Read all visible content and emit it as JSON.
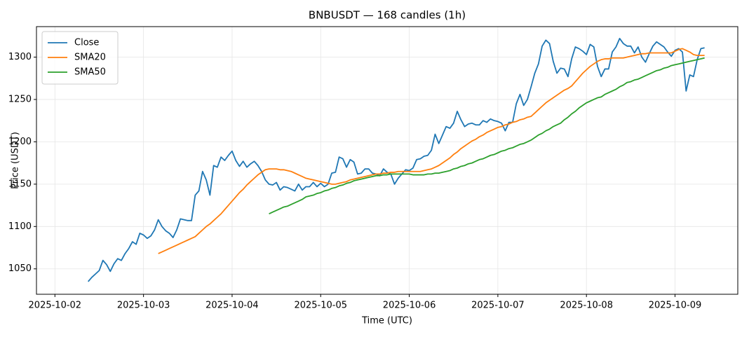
{
  "chart_data": {
    "type": "line",
    "title": "BNBUSDT — 168 candles (1h)",
    "xlabel": "Time (UTC)",
    "ylabel": "Price (USDT)",
    "x": [
      "2025-10-02 09:00",
      "2025-10-02 10:00",
      "2025-10-02 11:00",
      "2025-10-02 12:00",
      "2025-10-02 13:00",
      "2025-10-02 14:00",
      "2025-10-02 15:00",
      "2025-10-02 16:00",
      "2025-10-02 17:00",
      "2025-10-02 18:00",
      "2025-10-02 19:00",
      "2025-10-02 20:00",
      "2025-10-02 21:00",
      "2025-10-02 22:00",
      "2025-10-02 23:00",
      "2025-10-03 00:00",
      "2025-10-03 01:00",
      "2025-10-03 02:00",
      "2025-10-03 03:00",
      "2025-10-03 04:00",
      "2025-10-03 05:00",
      "2025-10-03 06:00",
      "2025-10-03 07:00",
      "2025-10-03 08:00",
      "2025-10-03 09:00",
      "2025-10-03 10:00",
      "2025-10-03 11:00",
      "2025-10-03 12:00",
      "2025-10-03 13:00",
      "2025-10-03 14:00",
      "2025-10-03 15:00",
      "2025-10-03 16:00",
      "2025-10-03 17:00",
      "2025-10-03 18:00",
      "2025-10-03 19:00",
      "2025-10-03 20:00",
      "2025-10-03 21:00",
      "2025-10-03 22:00",
      "2025-10-03 23:00",
      "2025-10-04 00:00",
      "2025-10-04 01:00",
      "2025-10-04 02:00",
      "2025-10-04 03:00",
      "2025-10-04 04:00",
      "2025-10-04 05:00",
      "2025-10-04 06:00",
      "2025-10-04 07:00",
      "2025-10-04 08:00",
      "2025-10-04 09:00",
      "2025-10-04 10:00",
      "2025-10-04 11:00",
      "2025-10-04 12:00",
      "2025-10-04 13:00",
      "2025-10-04 14:00",
      "2025-10-04 15:00",
      "2025-10-04 16:00",
      "2025-10-04 17:00",
      "2025-10-04 18:00",
      "2025-10-04 19:00",
      "2025-10-04 20:00",
      "2025-10-04 21:00",
      "2025-10-04 22:00",
      "2025-10-04 23:00",
      "2025-10-05 00:00",
      "2025-10-05 01:00",
      "2025-10-05 02:00",
      "2025-10-05 03:00",
      "2025-10-05 04:00",
      "2025-10-05 05:00",
      "2025-10-05 06:00",
      "2025-10-05 07:00",
      "2025-10-05 08:00",
      "2025-10-05 09:00",
      "2025-10-05 10:00",
      "2025-10-05 11:00",
      "2025-10-05 12:00",
      "2025-10-05 13:00",
      "2025-10-05 14:00",
      "2025-10-05 15:00",
      "2025-10-05 16:00",
      "2025-10-05 17:00",
      "2025-10-05 18:00",
      "2025-10-05 19:00",
      "2025-10-05 20:00",
      "2025-10-05 21:00",
      "2025-10-05 22:00",
      "2025-10-05 23:00",
      "2025-10-06 00:00",
      "2025-10-06 01:00",
      "2025-10-06 02:00",
      "2025-10-06 03:00",
      "2025-10-06 04:00",
      "2025-10-06 05:00",
      "2025-10-06 06:00",
      "2025-10-06 07:00",
      "2025-10-06 08:00",
      "2025-10-06 09:00",
      "2025-10-06 10:00",
      "2025-10-06 11:00",
      "2025-10-06 12:00",
      "2025-10-06 13:00",
      "2025-10-06 14:00",
      "2025-10-06 15:00",
      "2025-10-06 16:00",
      "2025-10-06 17:00",
      "2025-10-06 18:00",
      "2025-10-06 19:00",
      "2025-10-06 20:00",
      "2025-10-06 21:00",
      "2025-10-06 22:00",
      "2025-10-06 23:00",
      "2025-10-07 00:00",
      "2025-10-07 01:00",
      "2025-10-07 02:00",
      "2025-10-07 03:00",
      "2025-10-07 04:00",
      "2025-10-07 05:00",
      "2025-10-07 06:00",
      "2025-10-07 07:00",
      "2025-10-07 08:00",
      "2025-10-07 09:00",
      "2025-10-07 10:00",
      "2025-10-07 11:00",
      "2025-10-07 12:00",
      "2025-10-07 13:00",
      "2025-10-07 14:00",
      "2025-10-07 15:00",
      "2025-10-07 16:00",
      "2025-10-07 17:00",
      "2025-10-07 18:00",
      "2025-10-07 19:00",
      "2025-10-07 20:00",
      "2025-10-07 21:00",
      "2025-10-07 22:00",
      "2025-10-07 23:00",
      "2025-10-08 00:00",
      "2025-10-08 01:00",
      "2025-10-08 02:00",
      "2025-10-08 03:00",
      "2025-10-08 04:00",
      "2025-10-08 05:00",
      "2025-10-08 06:00",
      "2025-10-08 07:00",
      "2025-10-08 08:00",
      "2025-10-08 09:00",
      "2025-10-08 10:00",
      "2025-10-08 11:00",
      "2025-10-08 12:00",
      "2025-10-08 13:00",
      "2025-10-08 14:00",
      "2025-10-08 15:00",
      "2025-10-08 16:00",
      "2025-10-08 17:00",
      "2025-10-08 18:00",
      "2025-10-08 19:00",
      "2025-10-08 20:00",
      "2025-10-08 21:00",
      "2025-10-08 22:00",
      "2025-10-08 23:00",
      "2025-10-09 00:00",
      "2025-10-09 01:00",
      "2025-10-09 02:00",
      "2025-10-09 03:00",
      "2025-10-09 04:00",
      "2025-10-09 05:00",
      "2025-10-09 06:00",
      "2025-10-09 07:00",
      "2025-10-09 08:00"
    ],
    "series": [
      {
        "name": "Close",
        "color": "#1f77b4",
        "values": [
          1035,
          1040,
          1044,
          1048,
          1060,
          1055,
          1047,
          1056,
          1062,
          1060,
          1068,
          1074,
          1082,
          1079,
          1092,
          1090,
          1086,
          1089,
          1096,
          1108,
          1100,
          1095,
          1092,
          1087,
          1096,
          1109,
          1108,
          1107,
          1107,
          1137,
          1142,
          1165,
          1155,
          1137,
          1172,
          1170,
          1182,
          1178,
          1184,
          1189,
          1178,
          1171,
          1177,
          1170,
          1174,
          1177,
          1172,
          1165,
          1155,
          1150,
          1149,
          1152,
          1143,
          1147,
          1146,
          1144,
          1142,
          1150,
          1143,
          1147,
          1147,
          1152,
          1147,
          1151,
          1147,
          1150,
          1163,
          1164,
          1182,
          1180,
          1170,
          1179,
          1176,
          1162,
          1163,
          1168,
          1168,
          1163,
          1162,
          1160,
          1168,
          1164,
          1162,
          1150,
          1157,
          1162,
          1167,
          1166,
          1169,
          1179,
          1180,
          1183,
          1184,
          1190,
          1209,
          1198,
          1208,
          1218,
          1216,
          1222,
          1236,
          1226,
          1218,
          1221,
          1222,
          1220,
          1220,
          1225,
          1223,
          1227,
          1225,
          1224,
          1222,
          1213,
          1223,
          1223,
          1245,
          1256,
          1243,
          1250,
          1265,
          1281,
          1292,
          1313,
          1320,
          1316,
          1295,
          1281,
          1287,
          1286,
          1277,
          1298,
          1312,
          1310,
          1307,
          1303,
          1315,
          1312,
          1289,
          1277,
          1286,
          1286,
          1306,
          1312,
          1322,
          1316,
          1313,
          1313,
          1305,
          1312,
          1300,
          1294,
          1304,
          1313,
          1318,
          1315,
          1312,
          1306,
          1301,
          1308,
          1310,
          1306,
          1260,
          1279,
          1277,
          1297,
          1310,
          1311
        ]
      },
      {
        "name": "SMA20",
        "color": "#ff7f0e",
        "values": [
          null,
          null,
          null,
          null,
          null,
          null,
          null,
          null,
          null,
          null,
          null,
          null,
          null,
          null,
          null,
          null,
          null,
          null,
          null,
          1068,
          1070,
          1072,
          1074,
          1076,
          1078,
          1080,
          1082,
          1084,
          1086,
          1088,
          1092,
          1096,
          1100,
          1103,
          1107,
          1111,
          1115,
          1120,
          1125,
          1130,
          1135,
          1140,
          1144,
          1149,
          1153,
          1157,
          1161,
          1164,
          1167,
          1168,
          1168,
          1168,
          1167,
          1167,
          1166,
          1165,
          1163,
          1161,
          1159,
          1157,
          1156,
          1155,
          1154,
          1153,
          1152,
          1151,
          1150,
          1150,
          1151,
          1152,
          1153,
          1155,
          1156,
          1157,
          1158,
          1159,
          1160,
          1161,
          1162,
          1162,
          1163,
          1163,
          1164,
          1164,
          1165,
          1165,
          1165,
          1165,
          1165,
          1165,
          1165,
          1166,
          1167,
          1168,
          1170,
          1172,
          1175,
          1178,
          1181,
          1185,
          1188,
          1192,
          1195,
          1198,
          1201,
          1203,
          1206,
          1208,
          1211,
          1213,
          1215,
          1217,
          1218,
          1220,
          1221,
          1223,
          1224,
          1226,
          1227,
          1229,
          1230,
          1234,
          1238,
          1242,
          1246,
          1249,
          1252,
          1255,
          1258,
          1261,
          1263,
          1266,
          1271,
          1276,
          1281,
          1285,
          1289,
          1292,
          1295,
          1297,
          1298,
          1298,
          1299,
          1299,
          1299,
          1299,
          1300,
          1301,
          1302,
          1303,
          1304,
          1304,
          1305,
          1305,
          1305,
          1305,
          1305,
          1305,
          1305,
          1307,
          1309,
          1310,
          1308,
          1306,
          1303,
          1302,
          1302,
          1302
        ]
      },
      {
        "name": "SMA50",
        "color": "#2ca02c",
        "values": [
          null,
          null,
          null,
          null,
          null,
          null,
          null,
          null,
          null,
          null,
          null,
          null,
          null,
          null,
          null,
          null,
          null,
          null,
          null,
          null,
          null,
          null,
          null,
          null,
          null,
          null,
          null,
          null,
          null,
          null,
          null,
          null,
          null,
          null,
          null,
          null,
          null,
          null,
          null,
          null,
          null,
          null,
          null,
          null,
          null,
          null,
          null,
          null,
          null,
          1115,
          1117,
          1119,
          1121,
          1123,
          1124,
          1126,
          1128,
          1130,
          1132,
          1135,
          1136,
          1137,
          1139,
          1140,
          1142,
          1143,
          1145,
          1146,
          1148,
          1149,
          1151,
          1152,
          1154,
          1155,
          1156,
          1157,
          1158,
          1159,
          1160,
          1160,
          1161,
          1161,
          1162,
          1162,
          1162,
          1162,
          1162,
          1162,
          1161,
          1161,
          1161,
          1161,
          1162,
          1162,
          1163,
          1163,
          1164,
          1165,
          1166,
          1168,
          1169,
          1171,
          1172,
          1174,
          1175,
          1177,
          1179,
          1180,
          1182,
          1184,
          1185,
          1187,
          1189,
          1190,
          1192,
          1193,
          1195,
          1197,
          1198,
          1200,
          1202,
          1205,
          1208,
          1210,
          1213,
          1215,
          1218,
          1220,
          1222,
          1226,
          1229,
          1233,
          1236,
          1240,
          1243,
          1246,
          1248,
          1250,
          1252,
          1253,
          1256,
          1258,
          1260,
          1262,
          1265,
          1267,
          1270,
          1271,
          1273,
          1274,
          1276,
          1278,
          1280,
          1282,
          1284,
          1285,
          1287,
          1288,
          1290,
          1291,
          1292,
          1293,
          1294,
          1295,
          1296,
          1297,
          1298,
          1299
        ]
      }
    ],
    "xlim": [
      "2025-10-01 19:00",
      "2025-10-09 17:00"
    ],
    "xticks": [
      "2025-10-02",
      "2025-10-03",
      "2025-10-04",
      "2025-10-05",
      "2025-10-06",
      "2025-10-07",
      "2025-10-08",
      "2025-10-09"
    ],
    "ylim": [
      1020,
      1336
    ],
    "yticks": [
      1050,
      1100,
      1150,
      1200,
      1250,
      1300
    ],
    "grid": true,
    "legend": "upper left"
  }
}
